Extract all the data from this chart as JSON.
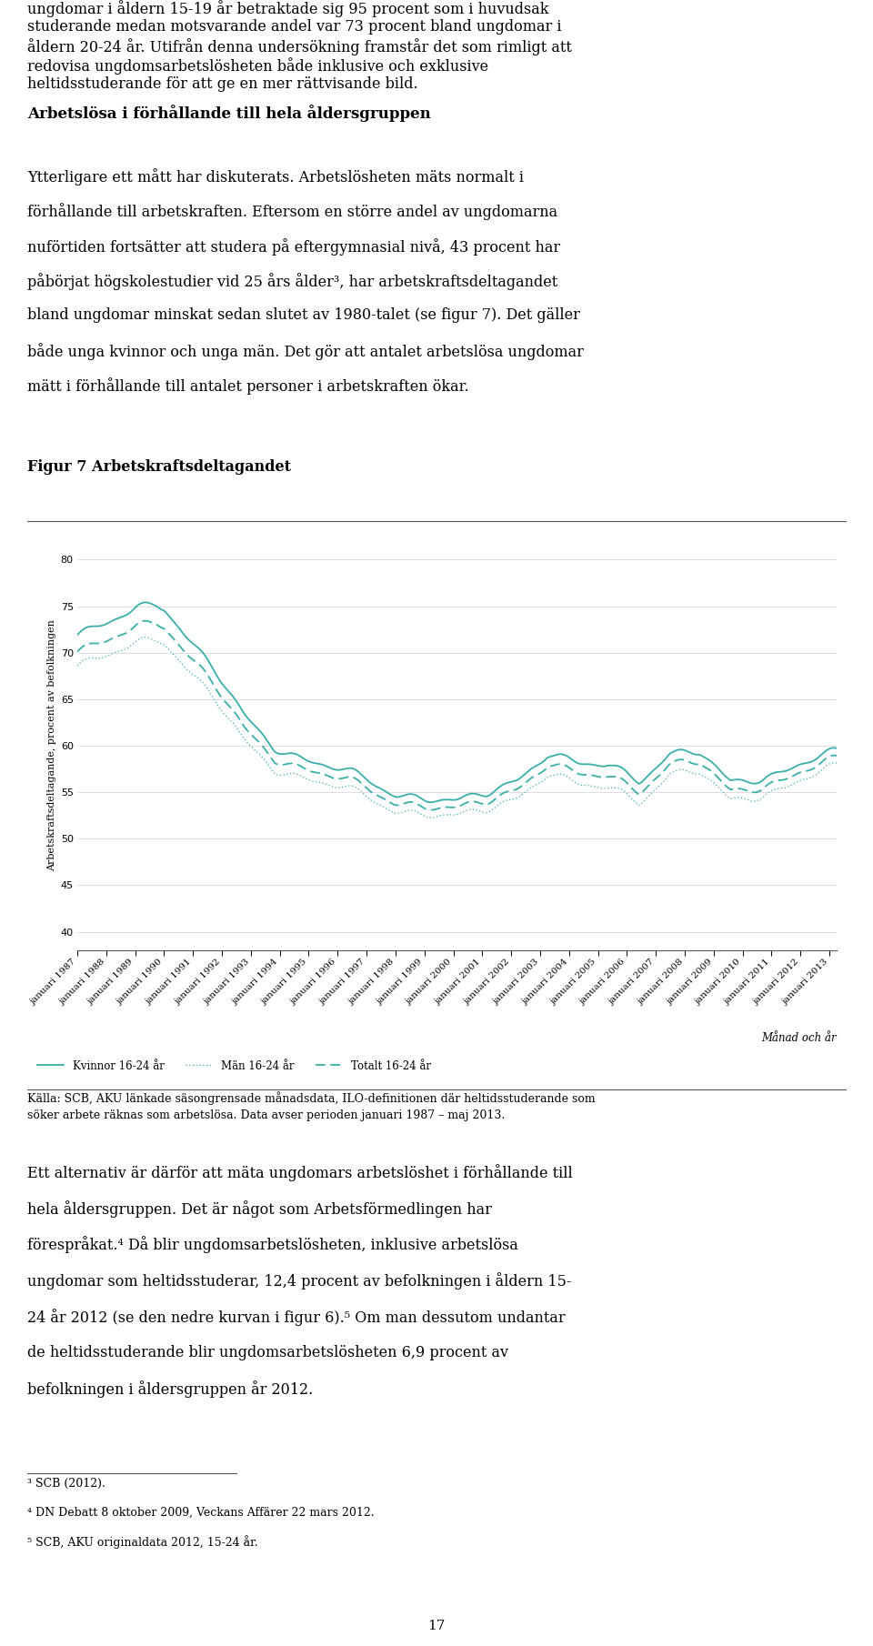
{
  "title_text": "Figur 7 Arbetskraftsdeltagandet",
  "ylabel": "Arbetskraftsdeltagande, procent av befolkningen",
  "xlabel": "Månad och år",
  "yticks": [
    40,
    45,
    50,
    55,
    60,
    65,
    70,
    75,
    80
  ],
  "ylim": [
    38,
    82
  ],
  "line_color": "#3aafa9",
  "background_color": "#ffffff",
  "legend_labels": [
    "Kvinnor 16-24 år",
    "Män 16-24 år",
    "Totalt 16-24 år"
  ],
  "source_text": "Källa: SCB, AKU länkade säsongrensade månadsdata, ILO-definitionen där heltidsstuderande som\nsöker arbete räknas som arbetslösa. Data avser perioden januari 1987 – maj 2013.",
  "top_para0_lines": [
    "ungdomar i åldern 15-19 år betraktade sig 95 procent som i huvudsak",
    "studerande medan motsvarande andel var 73 procent bland ungdomar i",
    "åldern 20-24 år. Utifrån denna undersökning framstår det som rimligt att",
    "redovisa ungdomsarbetslösheten både inklusive och exklusive",
    "heltidsstuderande för att ge en mer rättvisande bild."
  ],
  "heading": "Arbetslösa i förhållande till hela åldersgruppen",
  "top_para1_lines": [
    "Ytterligare ett mått har diskuterats. Arbetslösheten mäts normalt i",
    "förhållande till arbetskraften. Eftersom en större andel av ungdomarna",
    "nuförtiden fortsätter att studera på eftergymnasial nivå, 43 procent har",
    "påbörjat högskolestudier vid 25 års ålder³, har arbetskraftsdeltagandet",
    "bland ungdomar minskat sedan slutet av 1980-talet (se figur 7). Det gäller",
    "både unga kvinnor och unga män. Det gör att antalet arbetslösa ungdomar",
    "mätt i förhållande till antalet personer i arbetskraften ökar."
  ],
  "bottom_para_lines": [
    "Ett alternativ är därför att mäta ungdomars arbetslöshet i förhållande till",
    "hela åldersgruppen. Det är något som Arbetsförmedlingen har",
    "förespråkat.⁴ Då blir ungdomsarbetslösheten, inklusive arbetslösa",
    "ungdomar som heltidsstuderar, 12,4 procent av befolkningen i åldern 15-",
    "24 år 2012 (se den nedre kurvan i figur 6).⁵ Om man dessutom undantar",
    "de heltidsstuderande blir ungdomsarbetslösheten 6,9 procent av",
    "befolkningen i åldersgruppen år 2012."
  ],
  "footnote_lines": [
    "³ SCB (2012).",
    "⁴ DN Debatt 8 oktober 2009, Veckans Affärer 22 mars 2012.",
    "⁵ SCB, AKU originaldata 2012, 15-24 år."
  ],
  "page_num": "17",
  "x_labels": [
    "januari 1987",
    "januari 1988",
    "januari 1989",
    "januari 1990",
    "januari 1991",
    "januari 1992",
    "januari 1993",
    "januari 1994",
    "januari 1995",
    "januari 1996",
    "januari 1997",
    "januari 1998",
    "januari 1999",
    "januari 2000",
    "januari 2001",
    "januari 2002",
    "januari 2003",
    "januari 2004",
    "januari 2005",
    "januari 2006",
    "januari 2007",
    "januari 2008",
    "januari 2009",
    "januari 2010",
    "januari 2011",
    "januari 2012",
    "januari 2013"
  ]
}
